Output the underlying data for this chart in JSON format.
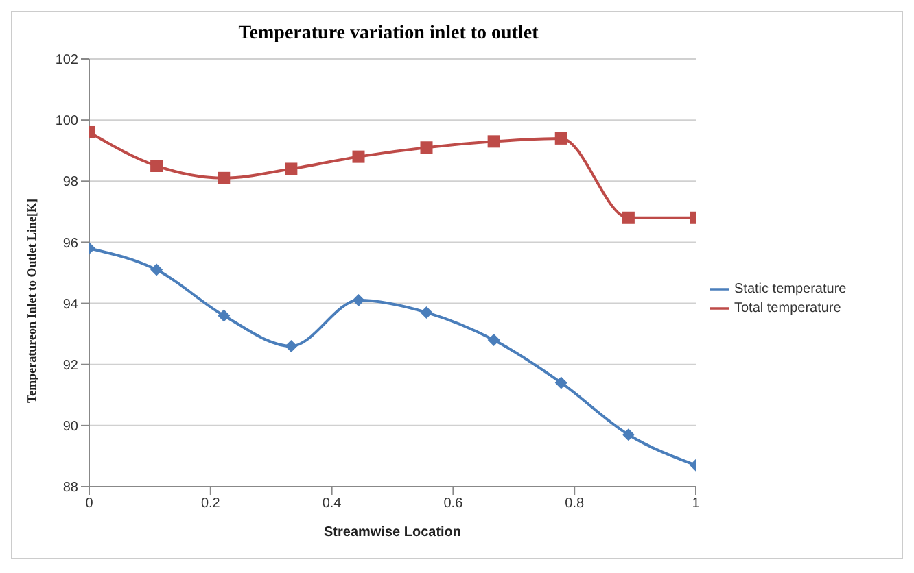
{
  "chart_data": {
    "type": "line",
    "title": "Temperature variation inlet to outlet",
    "xlabel": "Streamwise Location",
    "ylabel": "Temperatureon Inlet to Outlet  Line[K]",
    "x": [
      0,
      0.111,
      0.222,
      0.333,
      0.444,
      0.556,
      0.667,
      0.778,
      0.889,
      1
    ],
    "series": [
      {
        "name": "Static temperature",
        "color": "#4a7ebb",
        "marker": "diamond",
        "values": [
          95.8,
          95.1,
          93.6,
          92.6,
          94.1,
          93.7,
          92.8,
          91.4,
          89.7,
          88.7
        ]
      },
      {
        "name": "Total temperature",
        "color": "#be4b48",
        "marker": "square",
        "values": [
          99.6,
          98.5,
          98.1,
          98.4,
          98.8,
          99.1,
          99.3,
          99.4,
          96.8,
          96.8
        ]
      }
    ],
    "xlim": [
      0,
      1
    ],
    "xticks": [
      0,
      0.2,
      0.4,
      0.6,
      0.8,
      1
    ],
    "ylim": [
      88,
      102
    ],
    "yticks": [
      88,
      90,
      92,
      94,
      96,
      98,
      100,
      102
    ],
    "grid": "y",
    "legend": "right",
    "line_style": "solid"
  }
}
